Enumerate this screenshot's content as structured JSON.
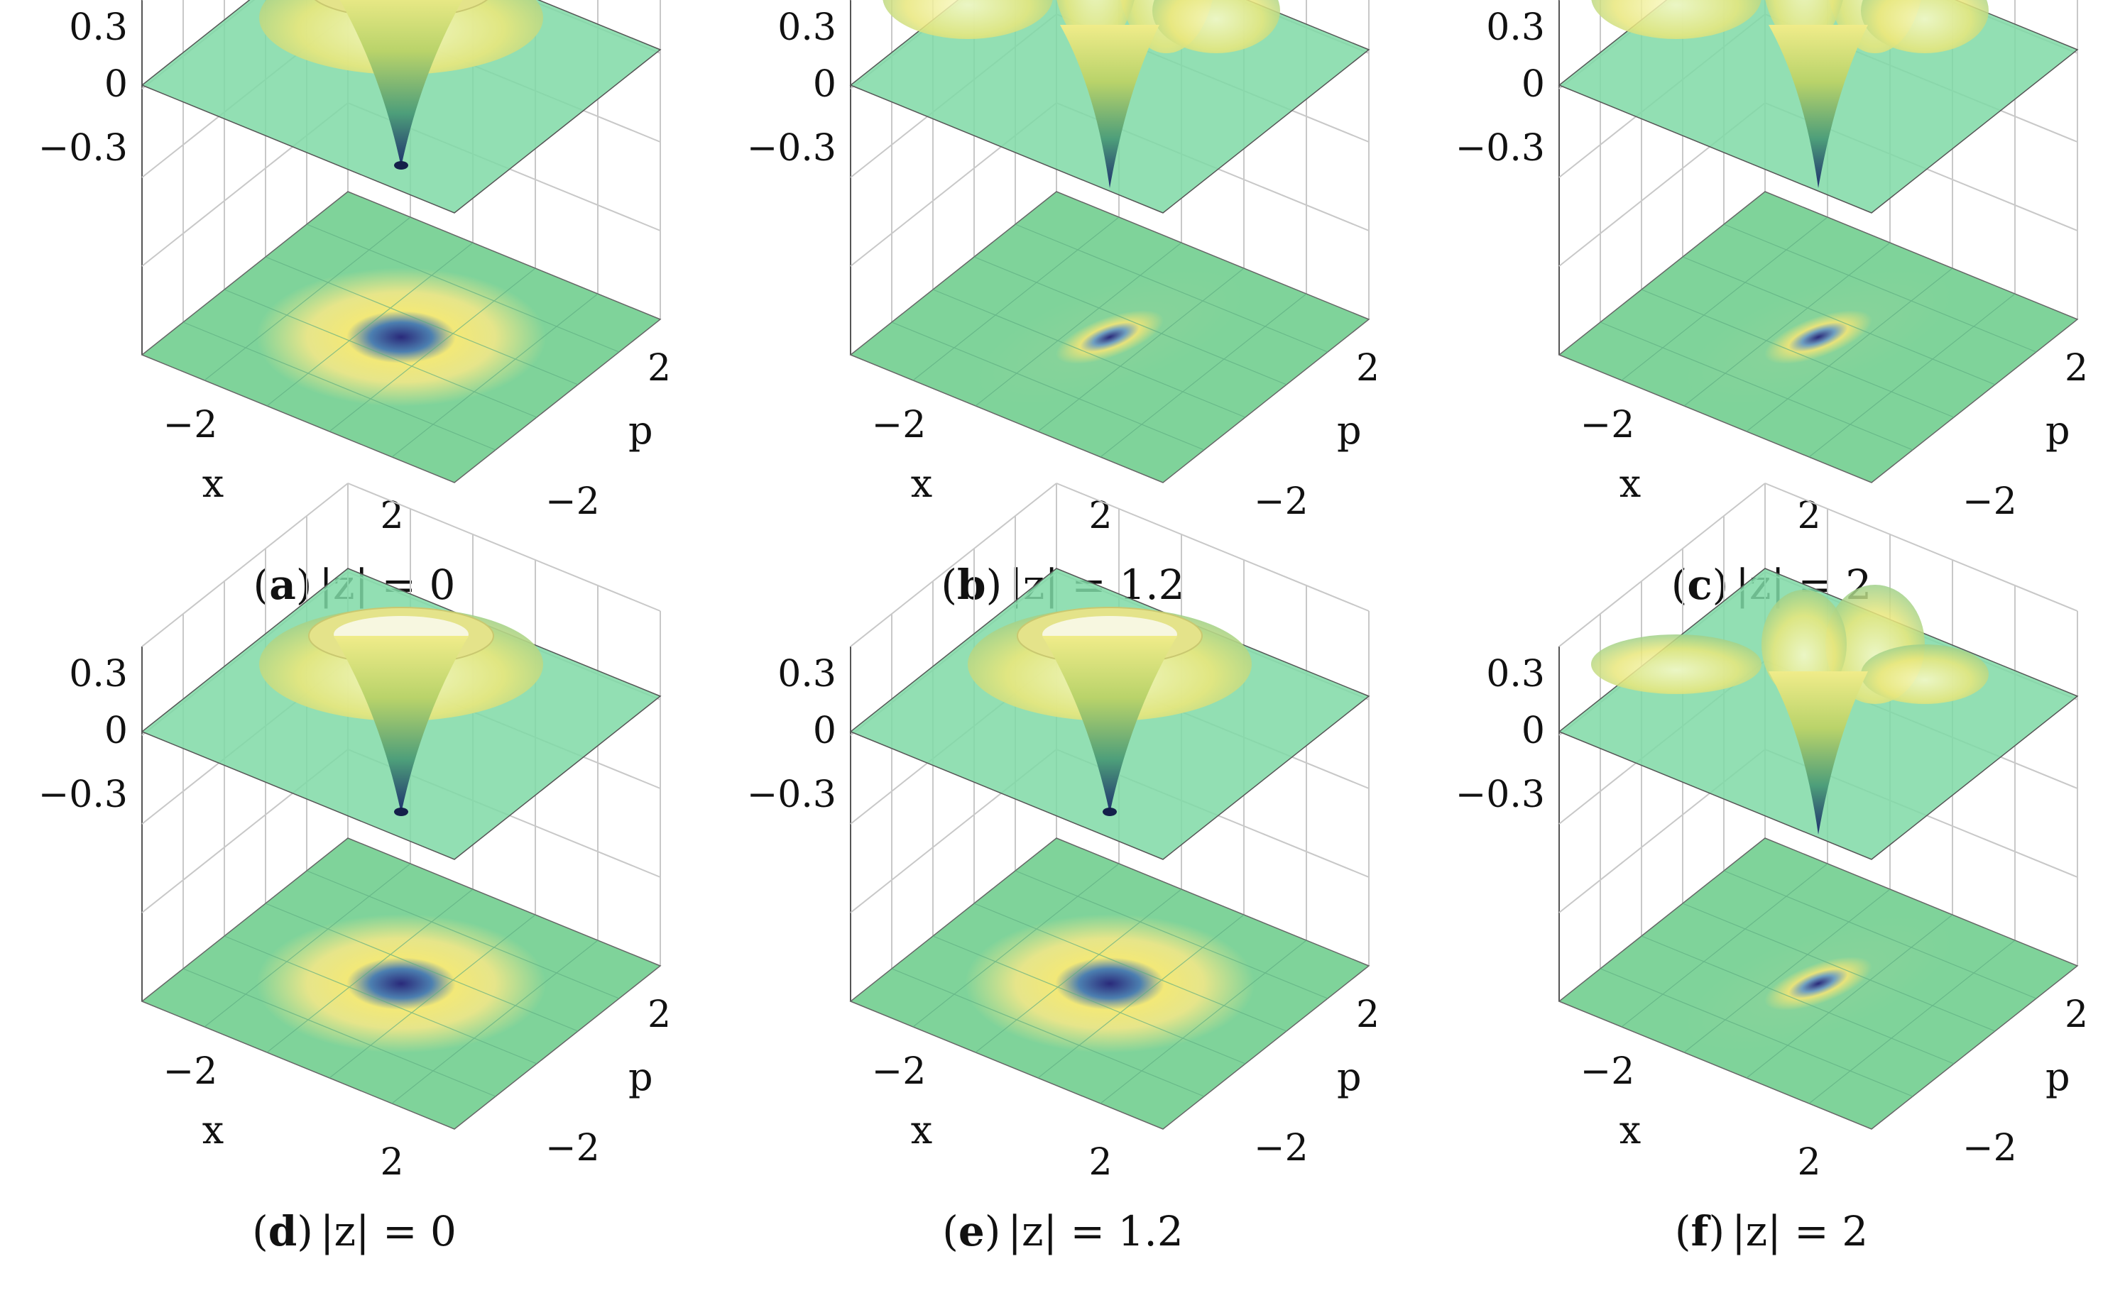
{
  "figure": {
    "panels": [
      {
        "id": "a",
        "letter": "a",
        "condition": "|z| = 0"
      },
      {
        "id": "b",
        "letter": "b",
        "condition": "|z| = 1.2"
      },
      {
        "id": "c",
        "letter": "c",
        "condition": "|z| = 2"
      },
      {
        "id": "d",
        "letter": "d",
        "condition": "|z| = 0"
      },
      {
        "id": "e",
        "letter": "e",
        "condition": "|z| = 1.2"
      },
      {
        "id": "f",
        "letter": "f",
        "condition": "|z| = 2"
      }
    ],
    "ticks": {
      "z": [
        "0.3",
        "0",
        "−0.3"
      ],
      "x": [
        "−2",
        "2"
      ],
      "p": [
        "2",
        "−2"
      ]
    },
    "axis_labels": {
      "x": "x",
      "p": "p"
    }
  },
  "chart_data": [
    {
      "type": "surface3d",
      "panel": "a",
      "x_range": [
        -3,
        3
      ],
      "p_range": [
        -3,
        3
      ],
      "z_ticks": [
        0.3,
        0,
        -0.3
      ],
      "x_ticks": [
        -2,
        2
      ],
      "p_ticks": [
        -2,
        2
      ],
      "colors": {
        "low": "#2b2d80",
        "mid": "#6fcf97",
        "high": "#f0e878"
      }
    },
    {
      "type": "surface3d",
      "panel": "b",
      "x_range": [
        -3,
        3
      ],
      "p_range": [
        -3,
        3
      ],
      "z_ticks": [
        0.3,
        0,
        -0.3
      ],
      "x_ticks": [
        -2,
        2
      ],
      "p_ticks": [
        -2,
        2
      ]
    },
    {
      "type": "surface3d",
      "panel": "c",
      "x_range": [
        -3,
        3
      ],
      "p_range": [
        -3,
        3
      ],
      "z_ticks": [
        0.3,
        0,
        -0.3
      ],
      "x_ticks": [
        -2,
        2
      ],
      "p_ticks": [
        -2,
        2
      ]
    },
    {
      "type": "surface3d",
      "panel": "d",
      "x_range": [
        -3,
        3
      ],
      "p_range": [
        -3,
        3
      ],
      "z_ticks": [
        0.3,
        0,
        -0.3
      ],
      "x_ticks": [
        -2,
        2
      ],
      "p_ticks": [
        -2,
        2
      ]
    },
    {
      "type": "surface3d",
      "panel": "e",
      "x_range": [
        -3,
        3
      ],
      "p_range": [
        -3,
        3
      ],
      "z_ticks": [
        0.3,
        0,
        -0.3
      ],
      "x_ticks": [
        -2,
        2
      ],
      "p_ticks": [
        -2,
        2
      ]
    },
    {
      "type": "surface3d",
      "panel": "f",
      "x_range": [
        -3,
        3
      ],
      "p_range": [
        -3,
        3
      ],
      "z_ticks": [
        0.3,
        0,
        -0.3
      ],
      "x_ticks": [
        -2,
        2
      ],
      "p_ticks": [
        -2,
        2
      ]
    }
  ]
}
